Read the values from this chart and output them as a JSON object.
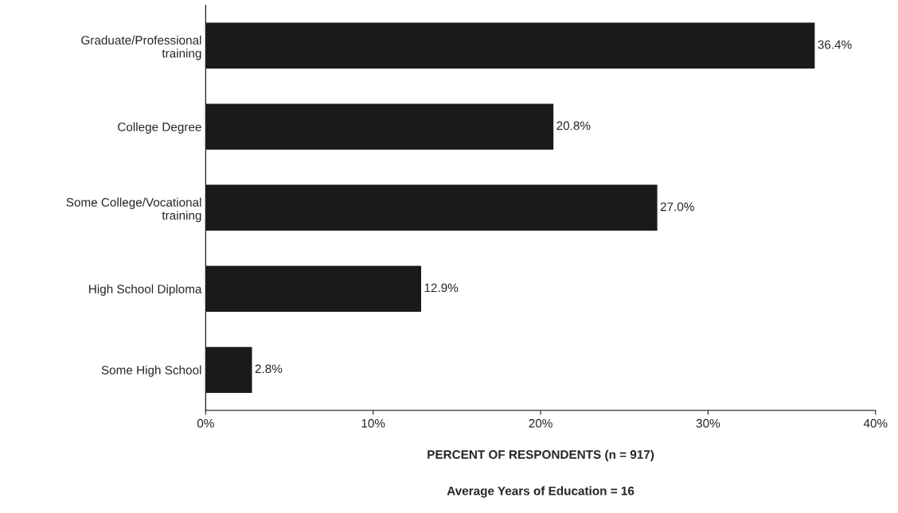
{
  "chart_data": {
    "type": "bar",
    "orientation": "horizontal",
    "categories": [
      "Graduate/Professional\ntraining",
      "College Degree",
      "Some College/Vocational\ntraining",
      "High School Diploma",
      "Some High School"
    ],
    "values": [
      36.4,
      20.8,
      27.0,
      12.9,
      2.8
    ],
    "value_labels": [
      "36.4%",
      "20.8%",
      "27.0%",
      "12.9%",
      "2.8%"
    ],
    "color": "#1a1a1a",
    "xlim": [
      0,
      40
    ],
    "xticks": [
      {
        "value": 0,
        "label": "0%"
      },
      {
        "value": 10,
        "label": "10%"
      },
      {
        "value": 20,
        "label": "20%"
      },
      {
        "value": 30,
        "label": "30%"
      },
      {
        "value": 40,
        "label": "40%"
      }
    ],
    "xlabel": "PERCENT OF RESPONDENTS (n = 917)",
    "annotations": [
      "Average Years of Education = 16"
    ],
    "grid": false,
    "legend": false
  }
}
